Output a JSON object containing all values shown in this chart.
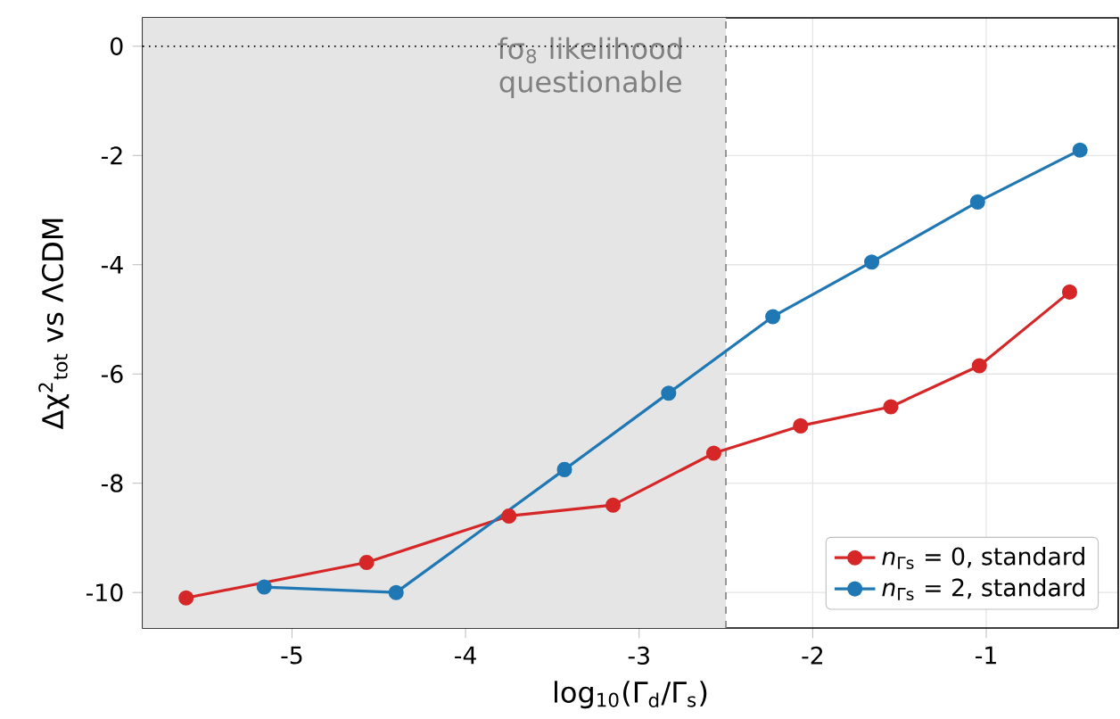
{
  "chart_data": {
    "type": "line",
    "xlabel": "log$_{10}$(Γ$_{d}$/Γ$_{s}$)",
    "ylabel": "Δχ$^{2}$$_{tot}$ vs ΛCDM",
    "xlim": [
      -5.86,
      -0.24
    ],
    "ylim": [
      -10.65,
      0.52
    ],
    "xticks": [
      -5,
      -4,
      -3,
      -2,
      -1
    ],
    "yticks": [
      -10,
      -8,
      -6,
      -4,
      -2,
      0
    ],
    "grid": true,
    "legend": "bottom right",
    "marker": "circle",
    "line_style": "solid",
    "series": [
      {
        "name": "*n*$_{Γs}$ = 0, standard",
        "color": "#d62728",
        "x": [
          -5.61,
          -4.57,
          -3.75,
          -3.15,
          -2.57,
          -2.07,
          -1.55,
          -1.04,
          -0.52
        ],
        "values": [
          -10.1,
          -9.45,
          -8.6,
          -8.4,
          -7.45,
          -6.95,
          -6.6,
          -5.85,
          -4.5
        ]
      },
      {
        "name": "*n*$_{Γs}$ = 2, standard",
        "color": "#1f77b4",
        "x": [
          -5.16,
          -4.4,
          -3.43,
          -2.83,
          -2.23,
          -1.66,
          -1.05,
          -0.46
        ],
        "values": [
          -9.9,
          -10.0,
          -7.75,
          -6.35,
          -4.95,
          -3.95,
          -2.85,
          -1.9
        ]
      }
    ],
    "ref_lines": [
      {
        "axis": "y",
        "value": 0,
        "color": "#000000",
        "line_style": "dotted"
      },
      {
        "axis": "x",
        "value": -2.5,
        "color": "#808080",
        "line_style": "dashed"
      }
    ],
    "bands": [
      {
        "axis": "x",
        "from": -5.86,
        "to": -2.5,
        "color": "#e5e5e5",
        "label": "fσ$_{8}$ likelihood questionable"
      }
    ]
  }
}
